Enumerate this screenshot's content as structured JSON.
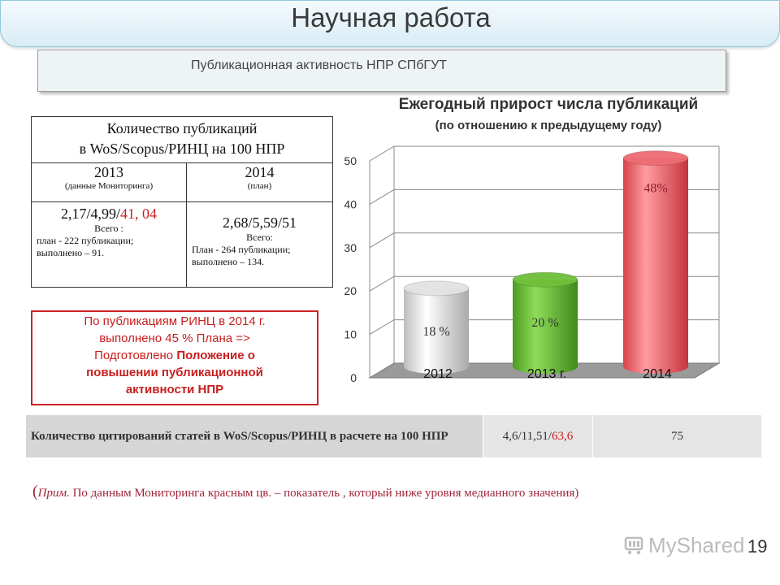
{
  "slide": {
    "title": "Научная работа",
    "subtitle": "Публикационная активность НПР СПбГУТ",
    "page_number": "19",
    "watermark": "MyShared"
  },
  "pub_table": {
    "header_line1": "Количество публикаций",
    "header_line2": "в WoS/Scopus/РИНЦ на 100 НПР",
    "col1": {
      "year": "2013",
      "sub": "(данные Мониторинга)",
      "values_black": "2,17/4,99/",
      "values_red": "41, 04",
      "total_label": "Всего :",
      "plan": "план - 222 публикации;",
      "done": "выполнено – 91."
    },
    "col2": {
      "year": "2014",
      "sub": "(план)",
      "values": "2,68/5,59/51",
      "total_label": "Всего:",
      "plan": "План - 264 публикации;",
      "done": "выполнено – 134."
    }
  },
  "red_box": {
    "line1": "По публикациям РИНЦ в 2014 г.",
    "line2": "выполнено 45 % Плана =>",
    "line3_plain": "Подготовлено ",
    "line3_bold": "Положение о",
    "line4": "повышении публикационной",
    "line5": "активности НПР"
  },
  "chart_data": {
    "type": "bar",
    "style": "3d-cylinder",
    "title": "Ежегодный прирост числа публикаций",
    "subtitle": "(по отношению к предыдущему году)",
    "categories": [
      "2012",
      "2013 г.",
      "2014"
    ],
    "values": [
      18,
      20,
      48
    ],
    "data_labels": [
      "18 %",
      "20 %",
      "48%"
    ],
    "colors": [
      "#e2e2e2",
      "#6fbf3a",
      "#ee6b72"
    ],
    "yticks": [
      "0",
      "10",
      "20",
      "30",
      "40",
      "50"
    ],
    "ylim": [
      0,
      50
    ],
    "grid": true,
    "legend": "none"
  },
  "cite_table": {
    "label": "Количество цитирований статей в WoS/Scopus/РИНЦ в расчете на 100 НПР",
    "value1_black": "4,6/11,51/",
    "value1_red": "63,6",
    "value2": "75"
  },
  "note": {
    "open": "(",
    "prefix": "Прим.",
    "text": " По данным Мониторинга красным цв. – показатель , который ниже уровня медианного значения)"
  }
}
